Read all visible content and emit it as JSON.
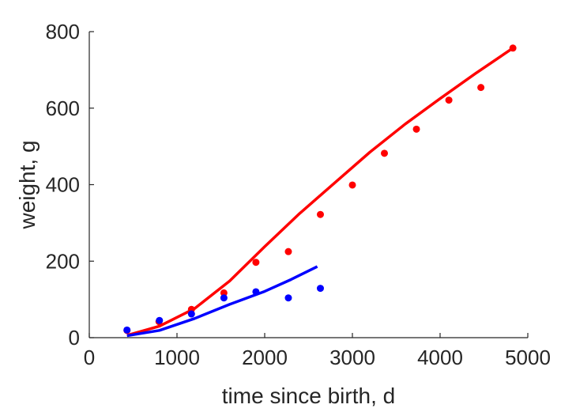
{
  "chart_data": {
    "type": "scatter",
    "title": "",
    "xlabel": "time since birth, d",
    "ylabel": "weight, g",
    "xlim": [
      0,
      5000
    ],
    "ylim": [
      0,
      800
    ],
    "x_ticks": [
      0,
      1000,
      2000,
      3000,
      4000,
      5000
    ],
    "y_ticks": [
      0,
      200,
      400,
      600,
      800
    ],
    "x_tick_labels": [
      "0",
      "1000",
      "2000",
      "3000",
      "4000",
      "5000"
    ],
    "y_tick_labels": [
      "0",
      "200",
      "400",
      "600",
      "800"
    ],
    "grid": false,
    "legend": "none",
    "series": [
      {
        "color": "#ff0000",
        "kind": "points",
        "x": [
          430,
          795,
          1165,
          1535,
          1900,
          2270,
          2635,
          3000,
          3365,
          3730,
          4100,
          4465,
          4830
        ],
        "y": [
          19,
          42,
          74,
          117,
          197,
          225,
          322,
          399,
          482,
          545,
          621,
          654,
          757
        ]
      },
      {
        "color": "#ff0000",
        "kind": "line",
        "x": [
          430,
          800,
          1200,
          1600,
          2000,
          2400,
          2800,
          3200,
          3600,
          4000,
          4400,
          4830
        ],
        "y": [
          6,
          30,
          76,
          148,
          238,
          325,
          405,
          485,
          558,
          625,
          690,
          757
        ]
      },
      {
        "color": "#0000ff",
        "kind": "points",
        "x": [
          430,
          800,
          1165,
          1535,
          1900,
          2270,
          2635
        ],
        "y": [
          20,
          45,
          62,
          104,
          120,
          104,
          129
        ]
      },
      {
        "color": "#0000ff",
        "kind": "line",
        "x": [
          430,
          800,
          1200,
          1600,
          2000,
          2300,
          2600
        ],
        "y": [
          5,
          19,
          50,
          87,
          121,
          152,
          186
        ]
      }
    ]
  }
}
